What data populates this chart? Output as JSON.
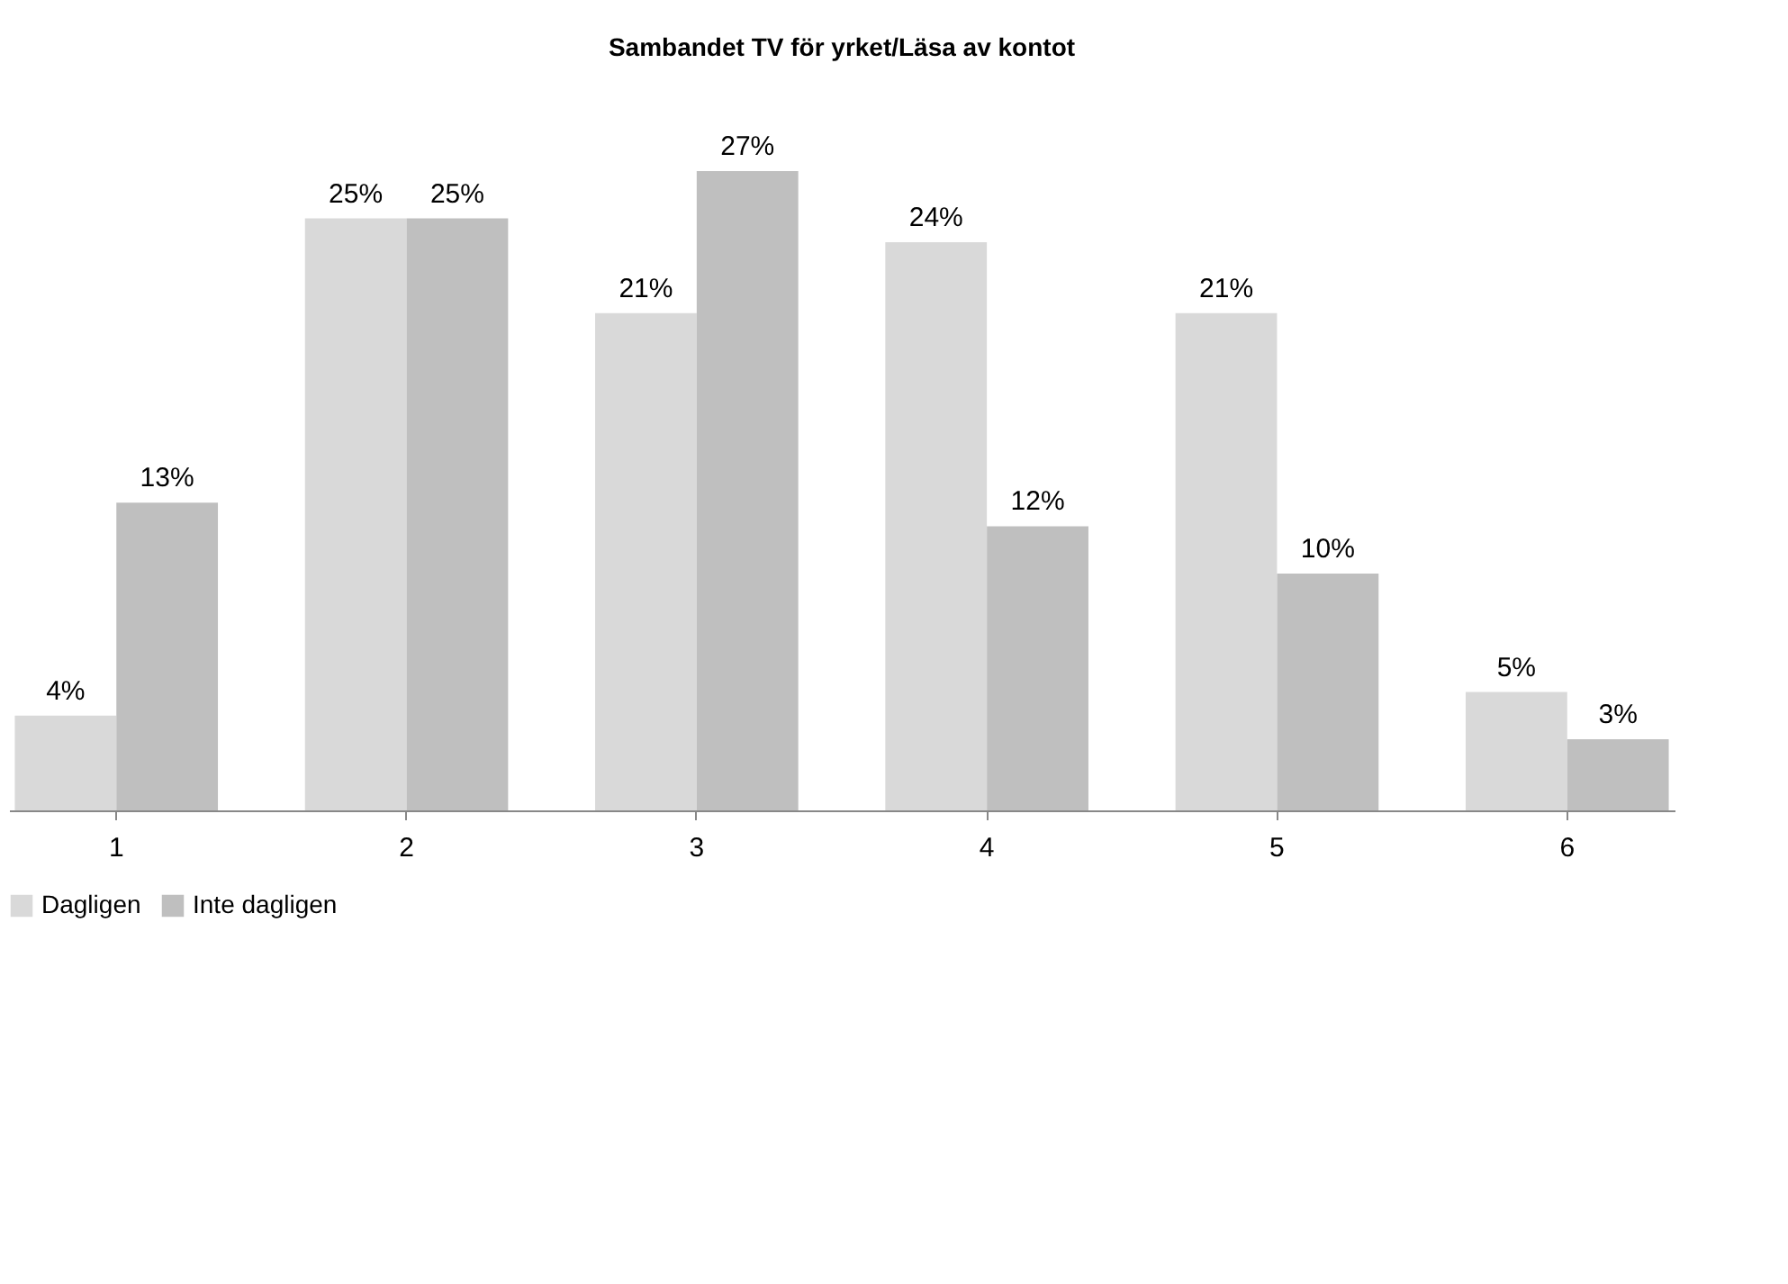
{
  "chart_data": {
    "type": "bar",
    "title": "Sambandet TV för yrket/Läsa av kontot",
    "categories": [
      "1",
      "2",
      "3",
      "4",
      "5",
      "6"
    ],
    "series": [
      {
        "name": "Dagligen",
        "color": "#d9d9d9",
        "values": [
          4,
          25,
          21,
          24,
          21,
          5
        ],
        "value_labels": [
          "4%",
          "25%",
          "21%",
          "24%",
          "21%",
          "5%"
        ]
      },
      {
        "name": "Inte dagligen",
        "color": "#bfbfbf",
        "values": [
          13,
          25,
          27,
          12,
          10,
          3
        ],
        "value_labels": [
          "13%",
          "25%",
          "27%",
          "12%",
          "10%",
          "3%"
        ]
      }
    ],
    "legend": "bottom",
    "grid": false
  }
}
